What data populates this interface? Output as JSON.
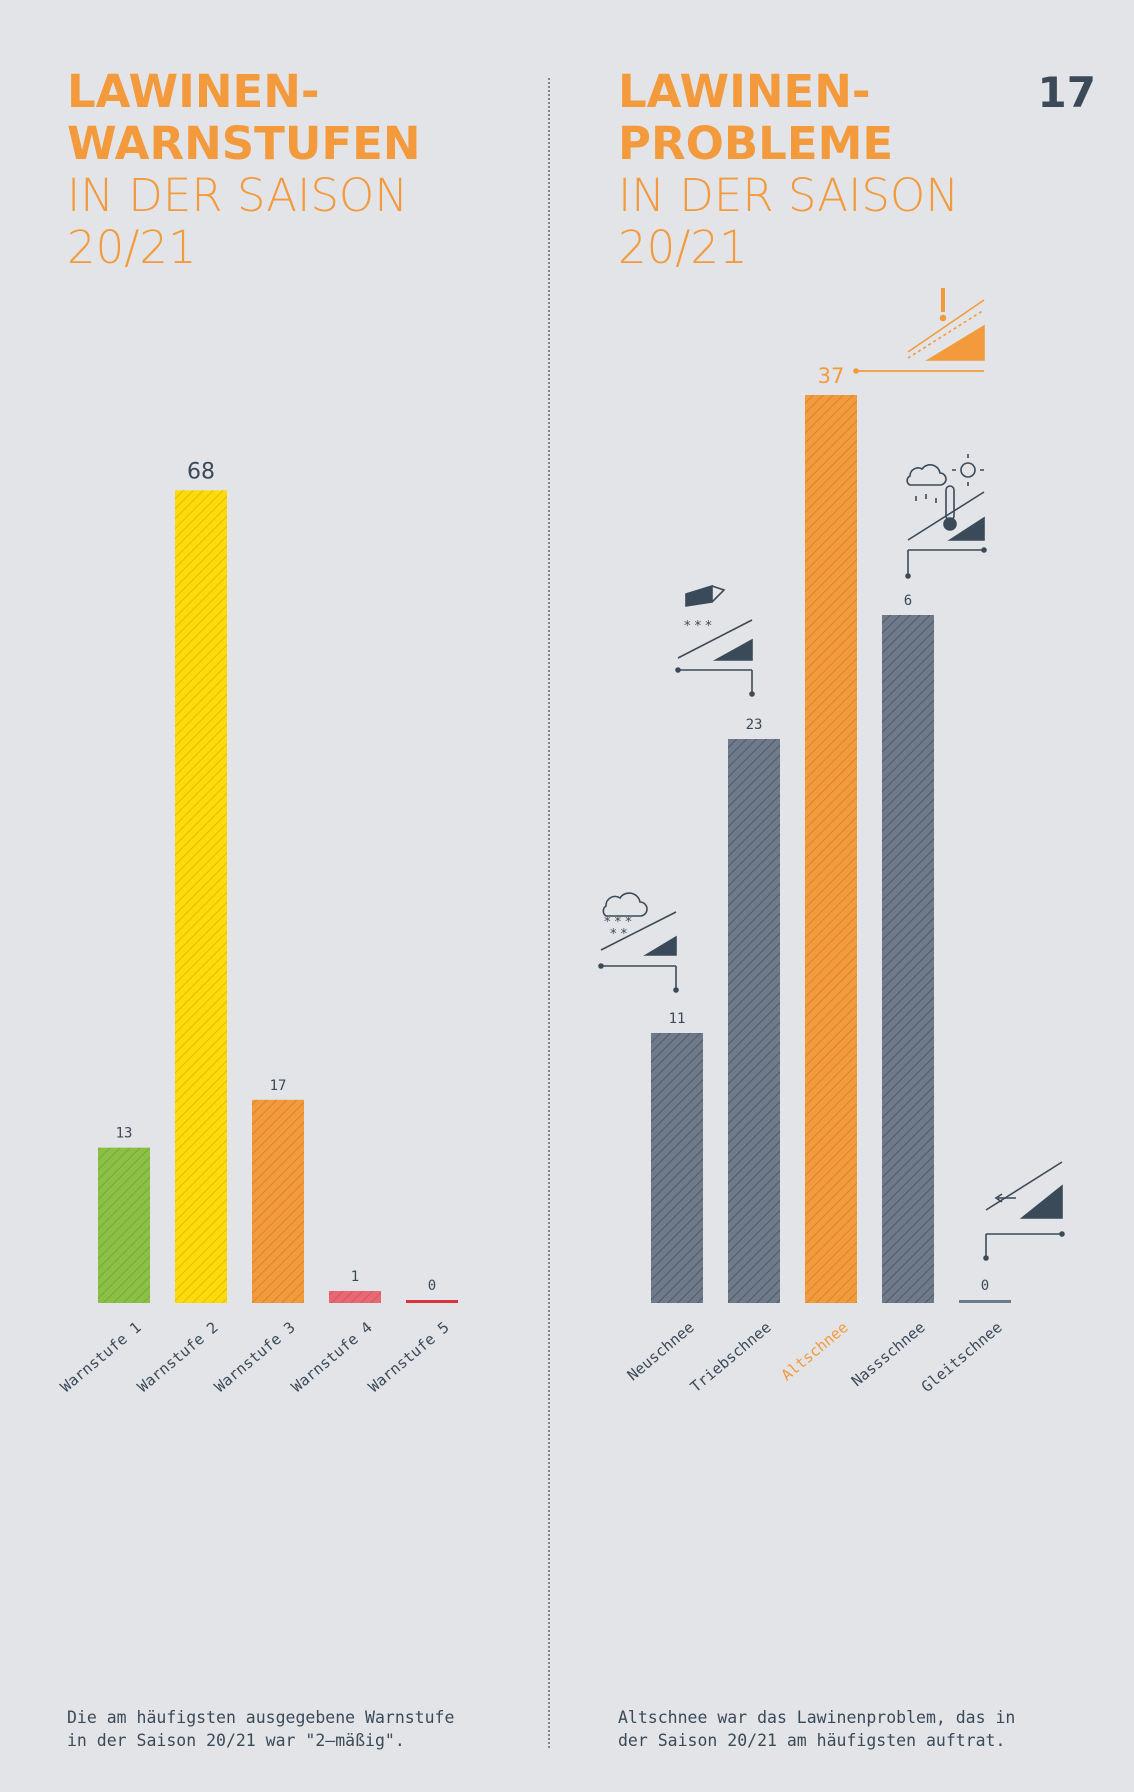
{
  "page_number": "17",
  "left": {
    "title_bold_1": "LAWINEN-",
    "title_bold_2": "WARNSTUFEN",
    "title_light_1": "IN DER SAISON",
    "title_light_2": "20/21",
    "caption_1": "Die am häufigsten ausgegebene Warnstufe",
    "caption_2": "in der Saison 20/21 war \"2–mäßig\"."
  },
  "right": {
    "title_bold_1": "LAWINEN-",
    "title_bold_2": "PROBLEME",
    "title_light_1": "IN DER SAISON",
    "title_light_2": "20/21",
    "caption_1": "Altschnee war das Lawinenproblem, das in",
    "caption_2": "der Saison 20/21 am häufigsten auftrat."
  },
  "colors": {
    "accent": "#f39a3c",
    "text_dark": "#3b4a58",
    "background": "#e3e4e8"
  },
  "chart_data": [
    {
      "type": "bar",
      "title": "LAWINEN-WARNSTUFEN IN DER SAISON 20/21",
      "categories": [
        "Warnstufe 1",
        "Warnstufe 2",
        "Warnstufe 3",
        "Warnstufe 4",
        "Warnstufe 5"
      ],
      "values": [
        13,
        68,
        17,
        1,
        0
      ],
      "colors": [
        "#8cc045",
        "#ffda0a",
        "#f39a3c",
        "#e96872",
        "#d6343f"
      ],
      "label_colors": [
        "#3b4a58",
        "#3b4a58",
        "#3b4a58",
        "#3b4a58",
        "#3b4a58"
      ],
      "highlight_label": [
        false,
        true,
        false,
        false,
        false
      ],
      "ylim": [
        0,
        68
      ],
      "grid": false
    },
    {
      "type": "bar",
      "title": "LAWINEN-PROBLEME IN DER SAISON 20/21",
      "categories": [
        "Neuschnee",
        "Triebschnee",
        "Altschnee",
        "Nassschnee",
        "Gleitschnee"
      ],
      "values": [
        11,
        23,
        37,
        6,
        0
      ],
      "colors": [
        "#6e7a8a",
        "#6e7a8a",
        "#f39a3c",
        "#6e7a8a",
        "#6e7a8a"
      ],
      "label_colors": [
        "#3b4a58",
        "#3b4a58",
        "#f39a3c",
        "#3b4a58",
        "#3b4a58"
      ],
      "highlight_label": [
        false,
        false,
        true,
        false,
        false
      ],
      "icons": [
        "snowfall-slope-icon",
        "wind-drift-slope-icon",
        "persistent-weak-layer-icon",
        "wet-snow-slope-icon",
        "gliding-snow-slope-icon"
      ],
      "grid": false
    }
  ]
}
